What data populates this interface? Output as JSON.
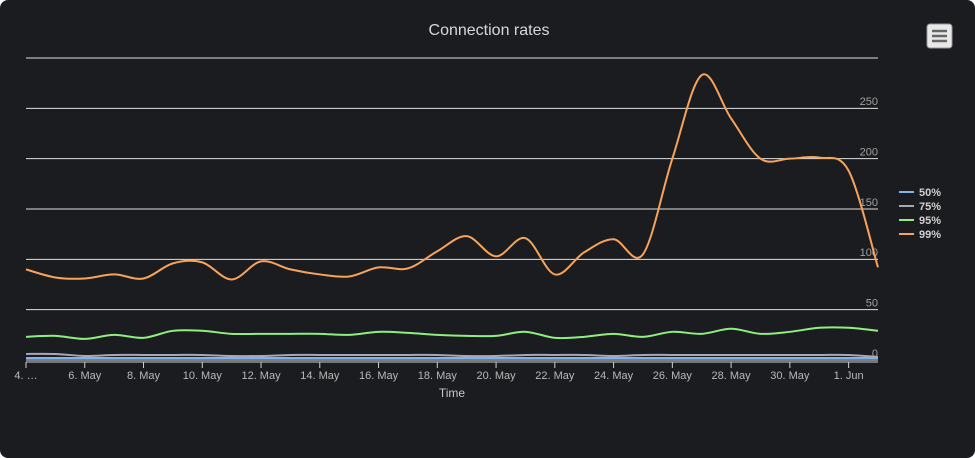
{
  "chart_data": {
    "type": "line",
    "title": "Connection rates",
    "x_label": "Time",
    "x": [
      "05-04",
      "05-05",
      "05-06",
      "05-07",
      "05-08",
      "05-09",
      "05-10",
      "05-11",
      "05-12",
      "05-13",
      "05-14",
      "05-15",
      "05-16",
      "05-17",
      "05-18",
      "05-19",
      "05-20",
      "05-21",
      "05-22",
      "05-23",
      "05-24",
      "05-25",
      "05-26",
      "05-27",
      "05-28",
      "05-29",
      "05-30",
      "05-31",
      "06-01",
      "06-02"
    ],
    "series": [
      {
        "name": "50%",
        "color": "#7cb5ec",
        "values": [
          2,
          2,
          2,
          2,
          2,
          2,
          2,
          2,
          2,
          2,
          2,
          2,
          2,
          2,
          2,
          2,
          2,
          2,
          2,
          2,
          2,
          2,
          2,
          2,
          2,
          2,
          2,
          2,
          2,
          2
        ]
      },
      {
        "name": "75%",
        "color": "#a4a9b3",
        "values": [
          6,
          6,
          4,
          5,
          5,
          5,
          5,
          4,
          4,
          5,
          5,
          5,
          5,
          5,
          5,
          4,
          4,
          5,
          5,
          5,
          4,
          5,
          5,
          5,
          5,
          5,
          5,
          5,
          5,
          3
        ]
      },
      {
        "name": "95%",
        "color": "#90ee7e",
        "values": [
          23,
          24,
          21,
          25,
          22,
          29,
          29,
          26,
          26,
          26,
          26,
          25,
          28,
          27,
          25,
          24,
          24,
          28,
          22,
          23,
          26,
          23,
          28,
          26,
          31,
          26,
          28,
          32,
          32,
          29
        ]
      },
      {
        "name": "99%",
        "color": "#f7a35c",
        "values": [
          90,
          82,
          81,
          85,
          81,
          96,
          97,
          80,
          98,
          90,
          85,
          83,
          92,
          91,
          108,
          123,
          103,
          121,
          85,
          107,
          120,
          105,
          200,
          283,
          240,
          200,
          200,
          201,
          188,
          92
        ]
      }
    ],
    "xlim": [
      "05-04",
      "06-02"
    ],
    "xticks": [
      {
        "value": "05-04",
        "label": "4. …"
      },
      {
        "value": "05-06",
        "label": "6. May"
      },
      {
        "value": "05-08",
        "label": "8. May"
      },
      {
        "value": "05-10",
        "label": "10. May"
      },
      {
        "value": "05-12",
        "label": "12. May"
      },
      {
        "value": "05-14",
        "label": "14. May"
      },
      {
        "value": "05-16",
        "label": "16. May"
      },
      {
        "value": "05-18",
        "label": "18. May"
      },
      {
        "value": "05-20",
        "label": "20. May"
      },
      {
        "value": "05-22",
        "label": "22. May"
      },
      {
        "value": "05-24",
        "label": "24. May"
      },
      {
        "value": "05-26",
        "label": "26. May"
      },
      {
        "value": "05-28",
        "label": "28. May"
      },
      {
        "value": "05-30",
        "label": "30. May"
      },
      {
        "value": "06-01",
        "label": "1. Jun"
      }
    ],
    "ylim": [
      0,
      300
    ],
    "yticks": [
      0,
      50,
      100,
      150,
      200,
      250
    ],
    "grid": true,
    "legend": "right"
  }
}
